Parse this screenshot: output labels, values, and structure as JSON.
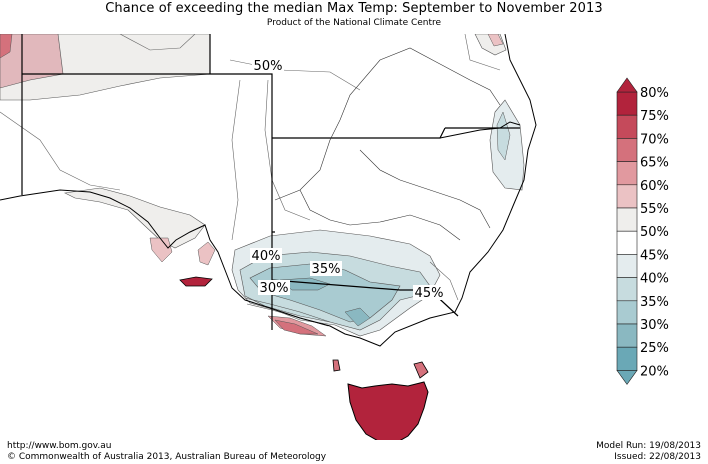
{
  "title": "Chance of exceeding the median Max Temp: September to November 2013",
  "subtitle": "Product of the National Climate Centre",
  "contour_labels": [
    "50%",
    "40%",
    "35%",
    "30%",
    "45%"
  ],
  "legend": {
    "items": [
      {
        "label": "80%",
        "color": "#b2233c"
      },
      {
        "label": "75%",
        "color": "#c54a5b"
      },
      {
        "label": "70%",
        "color": "#d4717c"
      },
      {
        "label": "65%",
        "color": "#e1999f"
      },
      {
        "label": "60%",
        "color": "#ebc2c4"
      },
      {
        "label": "55%",
        "color": "#efeeec"
      },
      {
        "label": "50%",
        "color": "#ffffff"
      },
      {
        "label": "45%",
        "color": "#ffffff"
      },
      {
        "label": "40%",
        "color": "#e4ecee"
      },
      {
        "label": "35%",
        "color": "#c7dcdf"
      },
      {
        "label": "30%",
        "color": "#a9cbd1"
      },
      {
        "label": "25%",
        "color": "#8ab8c1"
      },
      {
        "label": "20%",
        "color": "#6aa8b6"
      }
    ]
  },
  "footer": {
    "url": "http://www.bom.gov.au",
    "copyright": "©  Commonwealth of Australia 2013, Australian Bureau of Meteorology",
    "model_run": "Model Run: 19/08/2013",
    "issued": "Issued: 22/08/2013"
  }
}
